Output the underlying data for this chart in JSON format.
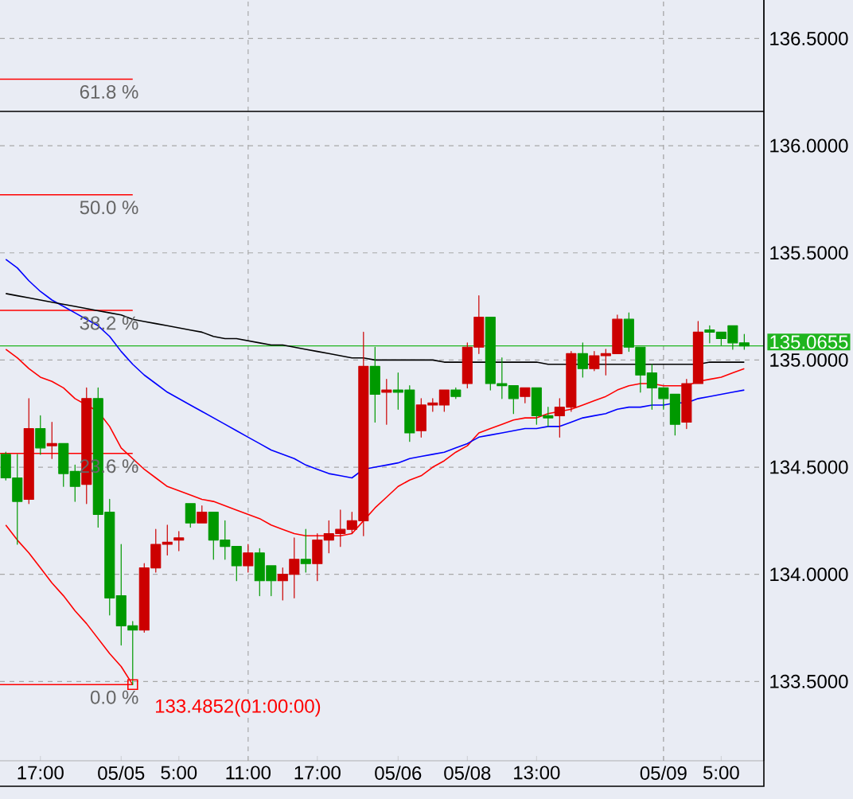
{
  "chart_data": {
    "type": "candlestick",
    "categories": [
      null,
      null,
      null,
      "17:00",
      null,
      null,
      null,
      null,
      null,
      null,
      "05/05",
      null,
      null,
      null,
      null,
      "5:00",
      null,
      null,
      null,
      null,
      null,
      "11:00",
      null,
      null,
      null,
      null,
      null,
      "17:00",
      null,
      null,
      null,
      null,
      null,
      null,
      "05/06",
      null,
      null,
      null,
      null,
      null,
      "05/08",
      null,
      null,
      null,
      null,
      null,
      "13:00",
      null,
      null,
      null,
      null,
      null,
      null,
      null,
      null,
      null,
      null,
      "05/09",
      null,
      null,
      null,
      null,
      "5:00",
      null,
      null
    ],
    "ohlc": [
      [
        134.56,
        134.57,
        134.44,
        134.45
      ],
      [
        134.45,
        134.56,
        134.14,
        134.34
      ],
      [
        134.35,
        134.82,
        134.33,
        134.68
      ],
      [
        134.68,
        134.74,
        134.56,
        134.59
      ],
      [
        134.6,
        134.71,
        134.54,
        134.61
      ],
      [
        134.61,
        134.61,
        134.41,
        134.47
      ],
      [
        134.48,
        134.51,
        134.34,
        134.41
      ],
      [
        134.42,
        134.87,
        134.33,
        134.82
      ],
      [
        134.82,
        134.87,
        134.22,
        134.28
      ],
      [
        134.29,
        134.35,
        133.81,
        133.89
      ],
      [
        133.9,
        134.14,
        133.67,
        133.76
      ],
      [
        133.76,
        133.78,
        133.4852,
        133.74
      ],
      [
        133.74,
        134.05,
        133.73,
        134.03
      ],
      [
        134.03,
        134.21,
        134.01,
        134.14
      ],
      [
        134.14,
        134.23,
        134.09,
        134.15
      ],
      [
        134.16,
        134.2,
        134.11,
        134.17
      ],
      [
        134.33,
        134.33,
        134.22,
        134.24
      ],
      [
        134.24,
        134.32,
        134.24,
        134.29
      ],
      [
        134.29,
        134.29,
        134.07,
        134.16
      ],
      [
        134.16,
        134.25,
        134.07,
        134.13
      ],
      [
        134.13,
        134.13,
        133.97,
        134.04
      ],
      [
        134.04,
        134.14,
        134.01,
        134.1
      ],
      [
        134.1,
        134.12,
        133.9,
        133.97
      ],
      [
        134.04,
        134.04,
        133.9,
        133.97
      ],
      [
        133.97,
        134.03,
        133.88,
        134.0
      ],
      [
        134.0,
        134.17,
        133.89,
        134.07
      ],
      [
        134.07,
        134.21,
        134.01,
        134.05
      ],
      [
        134.05,
        134.19,
        133.97,
        134.16
      ],
      [
        134.16,
        134.25,
        134.1,
        134.19
      ],
      [
        134.19,
        134.3,
        134.13,
        134.21
      ],
      [
        134.21,
        134.29,
        134.19,
        134.25
      ],
      [
        134.25,
        135.13,
        134.18,
        134.97
      ],
      [
        134.97,
        135.06,
        134.71,
        134.84
      ],
      [
        134.85,
        134.91,
        134.7,
        134.86
      ],
      [
        134.86,
        134.94,
        134.77,
        134.85
      ],
      [
        134.86,
        134.88,
        134.62,
        134.66
      ],
      [
        134.67,
        134.82,
        134.64,
        134.79
      ],
      [
        134.79,
        134.82,
        134.76,
        134.8
      ],
      [
        134.79,
        134.86,
        134.76,
        134.86
      ],
      [
        134.86,
        134.87,
        134.82,
        134.83
      ],
      [
        134.89,
        135.08,
        134.87,
        135.06
      ],
      [
        135.06,
        135.3,
        135.03,
        135.2
      ],
      [
        135.2,
        135.2,
        134.86,
        134.89
      ],
      [
        134.89,
        135.01,
        134.82,
        134.88
      ],
      [
        134.88,
        134.88,
        134.75,
        134.82
      ],
      [
        134.83,
        134.87,
        134.8,
        134.87
      ],
      [
        134.87,
        134.87,
        134.7,
        134.74
      ],
      [
        134.74,
        134.78,
        134.69,
        134.73
      ],
      [
        134.74,
        134.82,
        134.64,
        134.78
      ],
      [
        134.78,
        135.04,
        134.76,
        135.03
      ],
      [
        135.03,
        135.08,
        134.92,
        134.96
      ],
      [
        134.96,
        135.04,
        134.95,
        135.02
      ],
      [
        135.02,
        135.05,
        134.93,
        135.03
      ],
      [
        135.03,
        135.21,
        135.03,
        135.19
      ],
      [
        135.19,
        135.22,
        135.04,
        135.06
      ],
      [
        135.06,
        135.06,
        134.85,
        134.93
      ],
      [
        134.94,
        134.98,
        134.77,
        134.87
      ],
      [
        134.87,
        134.87,
        134.77,
        134.82
      ],
      [
        134.84,
        134.84,
        134.65,
        134.7
      ],
      [
        134.71,
        134.91,
        134.68,
        134.89
      ],
      [
        134.89,
        135.18,
        134.89,
        135.13
      ],
      [
        135.14,
        135.16,
        135.08,
        135.13
      ],
      [
        135.13,
        135.13,
        135.07,
        135.1
      ],
      [
        135.16,
        135.16,
        135.05,
        135.08
      ],
      [
        135.08,
        135.12,
        135.05,
        135.0655
      ]
    ],
    "colors": [
      "#009900",
      "#009900",
      "#cc0000",
      "#009900",
      "#cc0000",
      "#009900",
      "#009900",
      "#cc0000",
      "#009900",
      "#009900",
      "#009900",
      "#009900",
      "#cc0000",
      "#cc0000",
      "#cc0000",
      "#cc0000",
      "#009900",
      "#cc0000",
      "#009900",
      "#009900",
      "#009900",
      "#cc0000",
      "#009900",
      "#009900",
      "#cc0000",
      "#cc0000",
      "#009900",
      "#cc0000",
      "#cc0000",
      "#cc0000",
      "#cc0000",
      "#cc0000",
      "#009900",
      "#cc0000",
      "#009900",
      "#009900",
      "#cc0000",
      "#cc0000",
      "#cc0000",
      "#009900",
      "#cc0000",
      "#cc0000",
      "#009900",
      "#009900",
      "#009900",
      "#cc0000",
      "#009900",
      "#009900",
      "#cc0000",
      "#cc0000",
      "#009900",
      "#cc0000",
      "#cc0000",
      "#cc0000",
      "#009900",
      "#009900",
      "#009900",
      "#009900",
      "#009900",
      "#cc0000",
      "#cc0000",
      "#009900",
      "#009900",
      "#009900",
      "#009900"
    ],
    "series": [
      {
        "type": "line",
        "color": "#ff0000",
        "values": [
          135.05,
          135.01,
          134.96,
          134.92,
          134.9,
          134.87,
          134.82,
          134.79,
          134.76,
          134.69,
          134.59,
          134.54,
          134.49,
          134.45,
          134.41,
          134.39,
          134.37,
          134.35,
          134.34,
          134.32,
          134.3,
          134.28,
          134.26,
          134.23,
          134.21,
          134.19,
          134.18,
          134.18,
          134.18,
          134.18,
          134.19,
          134.25,
          134.31,
          134.36,
          134.41,
          134.44,
          134.46,
          134.5,
          134.53,
          134.57,
          134.6,
          134.66,
          134.68,
          134.7,
          134.72,
          134.73,
          134.73,
          134.75,
          134.76,
          134.77,
          134.79,
          134.81,
          134.83,
          134.86,
          134.88,
          134.89,
          134.89,
          134.88,
          134.88,
          134.88,
          134.9,
          134.91,
          134.92,
          134.94,
          134.96
        ]
      },
      {
        "type": "line",
        "color": "#0000ff",
        "values": [
          135.47,
          135.43,
          135.37,
          135.32,
          135.28,
          135.25,
          135.22,
          135.19,
          135.16,
          135.11,
          135.04,
          134.98,
          134.93,
          134.89,
          134.85,
          134.82,
          134.79,
          134.76,
          134.73,
          134.7,
          134.67,
          134.64,
          134.61,
          134.58,
          134.56,
          134.54,
          134.51,
          134.49,
          134.47,
          134.46,
          134.45,
          134.49,
          134.5,
          134.51,
          134.52,
          134.54,
          134.55,
          134.56,
          134.57,
          134.59,
          134.61,
          134.64,
          134.65,
          134.66,
          134.67,
          134.68,
          134.68,
          134.69,
          134.69,
          134.71,
          134.73,
          134.74,
          134.75,
          134.77,
          134.78,
          134.78,
          134.79,
          134.79,
          134.8,
          134.8,
          134.82,
          134.83,
          134.84,
          134.85,
          134.86
        ]
      },
      {
        "type": "line",
        "color": "#000000",
        "values": [
          135.31,
          135.3,
          135.29,
          135.28,
          135.27,
          135.26,
          135.25,
          135.24,
          135.23,
          135.22,
          135.21,
          135.19,
          135.18,
          135.17,
          135.16,
          135.15,
          135.14,
          135.13,
          135.11,
          135.1,
          135.1,
          135.09,
          135.08,
          135.07,
          135.07,
          135.06,
          135.05,
          135.04,
          135.03,
          135.02,
          135.01,
          135.01,
          135.0,
          135.0,
          135.0,
          135.0,
          135.0,
          135.0,
          134.99,
          134.99,
          134.99,
          134.99,
          134.99,
          134.99,
          134.99,
          134.99,
          134.99,
          134.98,
          134.98,
          134.98,
          134.98,
          134.98,
          134.98,
          134.98,
          134.98,
          134.98,
          134.98,
          134.98,
          134.98,
          134.98,
          134.98,
          134.99,
          134.99,
          134.99,
          134.99
        ]
      },
      {
        "type": "line",
        "color": "#ff0000",
        "values": [
          134.23,
          134.16,
          134.1,
          134.03,
          133.96,
          133.9,
          133.83,
          133.77,
          133.7,
          133.63,
          133.57,
          133.4852,
          null,
          null,
          null,
          null,
          null,
          null,
          null,
          null,
          null,
          null,
          null,
          null,
          null,
          null,
          null,
          null,
          null,
          null,
          null,
          null,
          null,
          null,
          null,
          null,
          null,
          null,
          null,
          null,
          null,
          null,
          null,
          null,
          null,
          null,
          null,
          null,
          null,
          null,
          null,
          null,
          null,
          null,
          null,
          null,
          null,
          null,
          null,
          null,
          null,
          null,
          null,
          null,
          null
        ],
        "value_labels": [
          null,
          null,
          null,
          null,
          null,
          null,
          null,
          null,
          null,
          null,
          null,
          "133.4852(01:00:00)",
          null,
          null,
          null,
          null,
          null,
          null,
          null,
          null,
          null,
          null,
          null,
          null,
          null,
          null,
          null,
          null,
          null,
          null,
          null,
          null,
          null,
          null,
          null,
          null,
          null,
          null,
          null,
          null,
          null,
          null,
          null,
          null,
          null,
          null,
          null,
          null,
          null,
          null,
          null,
          null,
          null,
          null,
          null,
          null,
          null,
          null,
          null,
          null,
          null,
          null,
          null,
          null,
          null
        ]
      }
    ],
    "ylim": [
      133.13,
      136.68
    ],
    "yticks": [
      {
        "value": 133.5,
        "label": "133.5000"
      },
      {
        "value": 134.0,
        "label": "134.0000"
      },
      {
        "value": 134.5,
        "label": "134.5000"
      },
      {
        "value": 135.0,
        "label": "135.0000"
      },
      {
        "value": 135.5,
        "label": "135.5000"
      },
      {
        "value": 136.0,
        "label": "136.0000"
      },
      {
        "value": 136.5,
        "label": "136.5000"
      }
    ],
    "y2lim": [
      -7.77,
      69.89
    ],
    "grid": "y",
    "ref_lines": [
      {
        "axis": "x",
        "value": "11:00",
        "color": "#a0a0a0",
        "line_style": "dashed"
      },
      {
        "axis": "x",
        "value": "05/09",
        "color": "#a0a0a0",
        "line_style": "dashed"
      },
      {
        "axis": "y",
        "value": 136.16,
        "color": "#000000"
      },
      {
        "axis": "y2",
        "value": 61.8,
        "label": "61.8 %",
        "color": "#ff0000"
      },
      {
        "axis": "y2",
        "value": 50.0,
        "label": "50.0 %",
        "color": "#ff0000"
      },
      {
        "axis": "y2",
        "value": 38.2,
        "label": "38.2 %",
        "color": "#ff0000"
      },
      {
        "axis": "y2",
        "value": 23.6,
        "label": "23.6 %",
        "color": "#ff0000"
      },
      {
        "axis": "y2",
        "value": 0.0,
        "label": "0.0 %",
        "color": "#ff0000"
      },
      {
        "axis": "y",
        "value": 135.0655,
        "label": "135.0655",
        "color": "#1fb51f"
      }
    ]
  }
}
